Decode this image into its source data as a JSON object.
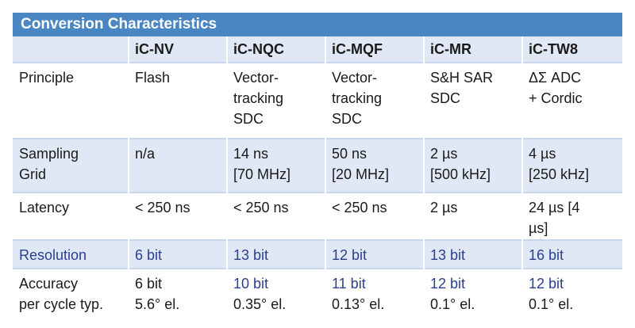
{
  "title": "Conversion Characteristics",
  "columns": [
    "",
    "iC-NV",
    "iC-NQC",
    "iC-MQF",
    "iC-MR",
    "iC-TW8"
  ],
  "rows": [
    {
      "label": "Principle",
      "cells": [
        "Flash",
        "Vector-\ntracking\nSDC",
        "Vector-\ntracking\nSDC",
        "S&H SAR\nSDC",
        "ΔΣ ADC\n+ Cordic"
      ]
    },
    {
      "label": "Sampling\nGrid",
      "cells": [
        "n/a",
        "14 ns\n[70 MHz]",
        "50 ns\n[20 MHz]",
        "2 µs\n[500 kHz]",
        "4 µs\n[250 kHz]"
      ]
    },
    {
      "label": "Latency",
      "cells": [
        "< 250 ns",
        "< 250 ns",
        "< 250 ns",
        "2 µs",
        "24 µs [4\nµs]"
      ]
    },
    {
      "label": "Resolution",
      "cells": [
        "6 bit",
        "13 bit",
        "12 bit",
        "13 bit",
        "16 bit"
      ]
    },
    {
      "label": "Accuracy\nper cycle typ.",
      "cells": [
        "6 bit\n5.6° el.",
        "10 bit\n0.35° el.",
        "11 bit\n0.13° el.",
        "12 bit\n0.1° el.",
        "12 bit\n0.1° el."
      ]
    }
  ],
  "colors": {
    "title_bg": "#4a86c2",
    "row_light": "#dfe8f4",
    "accent_text": "#2a3f8f"
  }
}
